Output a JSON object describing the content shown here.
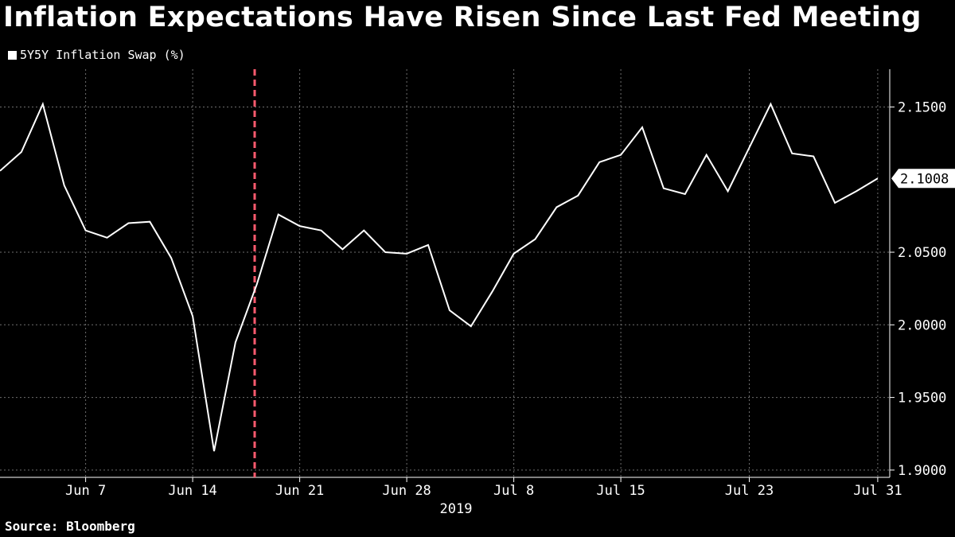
{
  "title": "Inflation Expectations Have Risen Since Last Fed Meeting",
  "legend": {
    "label": "5Y5Y Inflation Swap (%)",
    "color": "#ffffff"
  },
  "source": "Source: Bloomberg",
  "chart_data": {
    "type": "line",
    "title": "Inflation Expectations Have Risen Since Last Fed Meeting",
    "ylabel": "",
    "xlabel": "2019",
    "ylim": [
      1.895,
      2.176
    ],
    "y_ticks": [
      "1.9000",
      "1.9500",
      "2.0000",
      "2.0500",
      "2.1500"
    ],
    "x_ticks": [
      "Jun 7",
      "Jun 14",
      "Jun 21",
      "Jun 28",
      "Jul 8",
      "Jul 15",
      "Jul 23",
      "Jul 31"
    ],
    "x_tick_positions": [
      4,
      9,
      14,
      19,
      24,
      29,
      35,
      41
    ],
    "x_count": 42,
    "grid": true,
    "last_value_label": "2.1008",
    "event_marker": {
      "index": 12.0,
      "color": "#ff5a6e",
      "style": "dashed"
    },
    "series": [
      {
        "name": "5Y5Y Inflation Swap (%)",
        "color": "#ffffff",
        "values": [
          2.106,
          2.119,
          2.152,
          2.096,
          2.065,
          2.06,
          2.07,
          2.071,
          2.046,
          2.006,
          1.913,
          1.988,
          2.028,
          2.076,
          2.068,
          2.065,
          2.052,
          2.065,
          2.05,
          2.049,
          2.055,
          2.01,
          1.999,
          2.023,
          2.049,
          2.059,
          2.081,
          2.089,
          2.112,
          2.117,
          2.136,
          2.094,
          2.09,
          2.117,
          2.092,
          2.122,
          2.152,
          2.118,
          2.116,
          2.084,
          2.092,
          2.1008
        ]
      }
    ]
  }
}
